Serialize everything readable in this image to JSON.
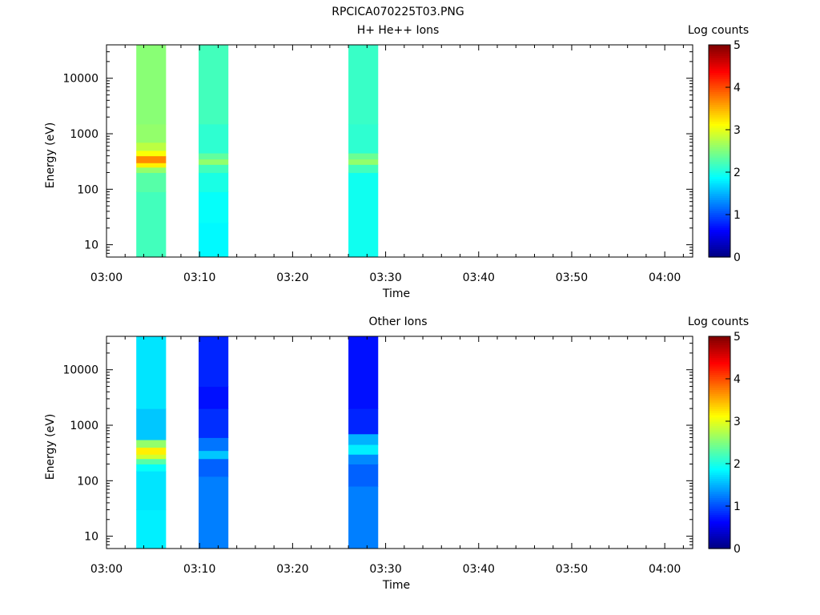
{
  "figure_title": "RPCICA070225T03.PNG",
  "colormap": [
    "#00007f",
    "#0000ff",
    "#007fff",
    "#00ffff",
    "#7fff7f",
    "#ffff00",
    "#ff7f00",
    "#ff0000",
    "#7f0000"
  ],
  "chart_data": [
    {
      "type": "heatmap",
      "title": "H+ He++ Ions",
      "xlabel": "Time",
      "ylabel": "Energy (eV)",
      "yscale": "log",
      "xlim": [
        "03:00",
        "04:03"
      ],
      "ylim": [
        6,
        40000
      ],
      "xticks": [
        "03:00",
        "03:10",
        "03:20",
        "03:30",
        "03:40",
        "03:50",
        "04:00"
      ],
      "yticks": [
        {
          "value": 10,
          "label": "10"
        },
        {
          "value": 100,
          "label": "100"
        },
        {
          "value": 1000,
          "label": "1000"
        },
        {
          "value": 10000,
          "label": "10000"
        }
      ],
      "colorbar": {
        "label": "Log counts",
        "range": [
          0,
          5
        ],
        "ticks": [
          "0",
          "1",
          "2",
          "3",
          "4",
          "5"
        ]
      },
      "columns": [
        {
          "start": "03:03.2",
          "end": "03:06.4",
          "bins": [
            {
              "e": [
                6,
                90
              ],
              "v": 2.2
            },
            {
              "e": [
                90,
                200
              ],
              "v": 2.3
            },
            {
              "e": [
                200,
                250
              ],
              "v": 2.6
            },
            {
              "e": [
                250,
                300
              ],
              "v": 3.2
            },
            {
              "e": [
                300,
                400
              ],
              "v": 3.7
            },
            {
              "e": [
                400,
                500
              ],
              "v": 3.1
            },
            {
              "e": [
                500,
                700
              ],
              "v": 2.8
            },
            {
              "e": [
                700,
                1500
              ],
              "v": 2.6
            },
            {
              "e": [
                1500,
                40000
              ],
              "v": 2.55
            }
          ]
        },
        {
          "start": "03:09.9",
          "end": "03:13.1",
          "bins": [
            {
              "e": [
                6,
                25
              ],
              "v": 1.85
            },
            {
              "e": [
                25,
                90
              ],
              "v": 1.9
            },
            {
              "e": [
                90,
                200
              ],
              "v": 2.0
            },
            {
              "e": [
                200,
                280
              ],
              "v": 2.2
            },
            {
              "e": [
                280,
                350
              ],
              "v": 2.6
            },
            {
              "e": [
                350,
                450
              ],
              "v": 2.35
            },
            {
              "e": [
                450,
                1500
              ],
              "v": 2.1
            },
            {
              "e": [
                1500,
                40000
              ],
              "v": 2.2
            }
          ]
        },
        {
          "start": "03:26.0",
          "end": "03:29.2",
          "bins": [
            {
              "e": [
                6,
                200
              ],
              "v": 1.95
            },
            {
              "e": [
                200,
                280
              ],
              "v": 2.2
            },
            {
              "e": [
                280,
                350
              ],
              "v": 2.6
            },
            {
              "e": [
                350,
                450
              ],
              "v": 2.4
            },
            {
              "e": [
                450,
                1500
              ],
              "v": 2.1
            },
            {
              "e": [
                1500,
                40000
              ],
              "v": 2.15
            }
          ]
        }
      ]
    },
    {
      "type": "heatmap",
      "title": "Other Ions",
      "xlabel": "Time",
      "ylabel": "Energy (eV)",
      "yscale": "log",
      "xlim": [
        "03:00",
        "04:03"
      ],
      "ylim": [
        6,
        40000
      ],
      "xticks": [
        "03:00",
        "03:10",
        "03:20",
        "03:30",
        "03:40",
        "03:50",
        "04:00"
      ],
      "yticks": [
        {
          "value": 10,
          "label": "10"
        },
        {
          "value": 100,
          "label": "100"
        },
        {
          "value": 1000,
          "label": "1000"
        },
        {
          "value": 10000,
          "label": "10000"
        }
      ],
      "colorbar": {
        "label": "Log counts",
        "range": [
          0,
          5
        ],
        "ticks": [
          "0",
          "1",
          "2",
          "3",
          "4",
          "5"
        ]
      },
      "columns": [
        {
          "start": "03:03.2",
          "end": "03:06.4",
          "bins": [
            {
              "e": [
                6,
                30
              ],
              "v": 1.8
            },
            {
              "e": [
                30,
                150
              ],
              "v": 1.75
            },
            {
              "e": [
                150,
                200
              ],
              "v": 1.9
            },
            {
              "e": [
                200,
                250
              ],
              "v": 2.3
            },
            {
              "e": [
                250,
                300
              ],
              "v": 2.9
            },
            {
              "e": [
                300,
                400
              ],
              "v": 3.2
            },
            {
              "e": [
                400,
                550
              ],
              "v": 2.6
            },
            {
              "e": [
                550,
                2000
              ],
              "v": 1.6
            },
            {
              "e": [
                2000,
                40000
              ],
              "v": 1.75
            }
          ]
        },
        {
          "start": "03:09.9",
          "end": "03:13.1",
          "bins": [
            {
              "e": [
                6,
                120
              ],
              "v": 1.25
            },
            {
              "e": [
                120,
                250
              ],
              "v": 1.1
            },
            {
              "e": [
                250,
                350
              ],
              "v": 1.6
            },
            {
              "e": [
                350,
                600
              ],
              "v": 1.2
            },
            {
              "e": [
                600,
                2000
              ],
              "v": 0.85
            },
            {
              "e": [
                2000,
                5000
              ],
              "v": 0.7
            },
            {
              "e": [
                5000,
                40000
              ],
              "v": 0.8
            }
          ]
        },
        {
          "start": "03:26.0",
          "end": "03:29.2",
          "bins": [
            {
              "e": [
                6,
                80
              ],
              "v": 1.25
            },
            {
              "e": [
                80,
                200
              ],
              "v": 1.1
            },
            {
              "e": [
                200,
                300
              ],
              "v": 1.3
            },
            {
              "e": [
                300,
                450
              ],
              "v": 1.8
            },
            {
              "e": [
                450,
                700
              ],
              "v": 1.5
            },
            {
              "e": [
                700,
                2000
              ],
              "v": 0.8
            },
            {
              "e": [
                2000,
                40000
              ],
              "v": 0.7
            }
          ]
        }
      ]
    }
  ]
}
